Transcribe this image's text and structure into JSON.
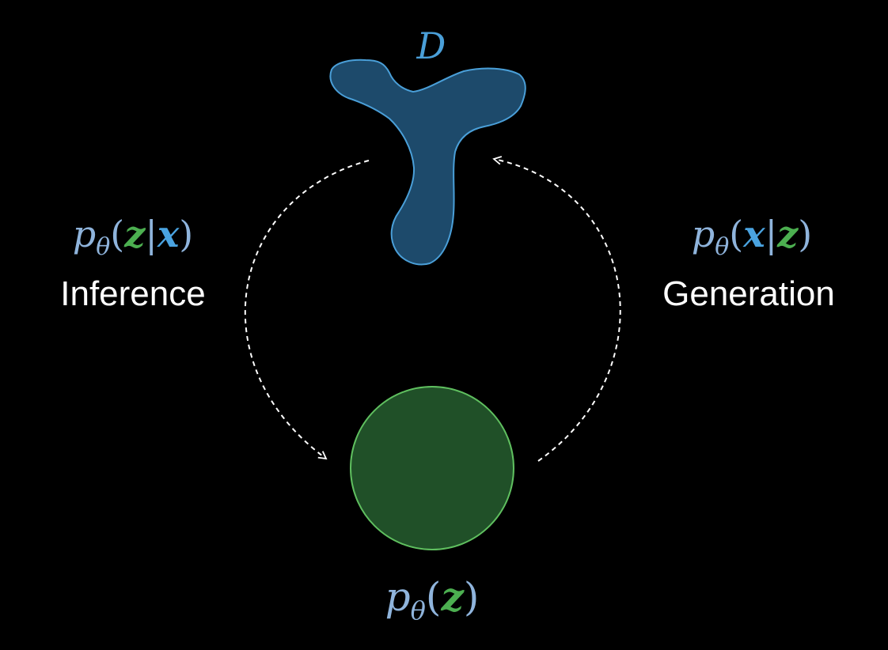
{
  "colors": {
    "background": "#000000",
    "data_fill": "#1d4a6b",
    "data_stroke": "#4a9fd8",
    "data_label": "#4a9fd8",
    "x_bold": "#4aa3e0",
    "z_bold": "#4caf50",
    "p_symbol": "#8fb4dc",
    "latent_fill": "#205028",
    "latent_stroke": "#5fbf5f",
    "label_white": "#ffffff",
    "arrow": "#ffffff"
  },
  "data_region": {
    "name": "D"
  },
  "left": {
    "formula": {
      "p": "p",
      "sub": "θ",
      "open": "(",
      "first": "z",
      "bar": "|",
      "second": "x",
      "close": ")"
    },
    "label": "Inference"
  },
  "right": {
    "formula": {
      "p": "p",
      "sub": "θ",
      "open": "(",
      "first": "x",
      "bar": "|",
      "second": "z",
      "close": ")"
    },
    "label": "Generation"
  },
  "bottom": {
    "formula": {
      "p": "p",
      "sub": "θ",
      "open": "(",
      "first": "z",
      "close": ")"
    }
  },
  "icons": {
    "data_shape": "tripod-blob",
    "latent_shape": "circle",
    "arrows": "dashed-curved-arrow"
  }
}
